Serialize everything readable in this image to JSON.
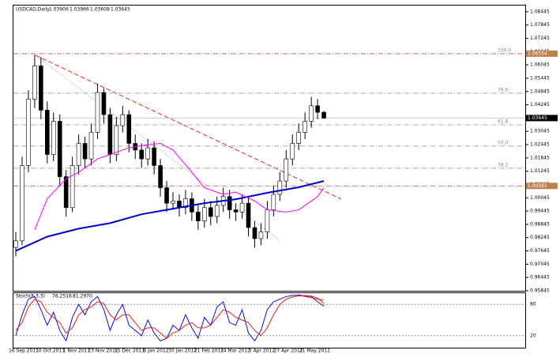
{
  "chart_data": {
    "type": "candlestick",
    "title": "USDCAD,Daily",
    "ohlc": [
      1.03906,
      1.03966,
      1.03608,
      1.03645
    ],
    "candles": [
      [
        0.978,
        0.985,
        0.974,
        0.981
      ],
      [
        0.981,
        1.019,
        0.979,
        1.015
      ],
      [
        1.015,
        1.049,
        1.012,
        1.045
      ],
      [
        1.045,
        1.065,
        1.041,
        1.06
      ],
      [
        1.06,
        1.064,
        1.036,
        1.04
      ],
      [
        1.04,
        1.044,
        1.016,
        1.02
      ],
      [
        1.02,
        1.039,
        1.017,
        1.035
      ],
      [
        1.035,
        1.038,
        1.006,
        1.01
      ],
      [
        1.01,
        1.013,
        0.992,
        0.996
      ],
      [
        0.996,
        1.019,
        0.994,
        1.015
      ],
      [
        1.015,
        1.029,
        1.011,
        1.025
      ],
      [
        1.025,
        1.028,
        1.014,
        1.018
      ],
      [
        1.018,
        1.034,
        1.015,
        1.03
      ],
      [
        1.03,
        1.052,
        1.027,
        1.048
      ],
      [
        1.048,
        1.05,
        1.034,
        1.038
      ],
      [
        1.038,
        1.041,
        1.016,
        1.02
      ],
      [
        1.02,
        1.037,
        1.017,
        1.033
      ],
      [
        1.033,
        1.042,
        1.03,
        1.038
      ],
      [
        1.038,
        1.04,
        1.021,
        1.025
      ],
      [
        1.025,
        1.029,
        1.018,
        1.022
      ],
      [
        1.022,
        1.025,
        1.014,
        1.018
      ],
      [
        1.018,
        1.027,
        1.015,
        1.023
      ],
      [
        1.023,
        1.026,
        1.011,
        1.015
      ],
      [
        1.015,
        1.018,
        1.001,
        1.005
      ],
      [
        1.005,
        1.008,
        0.994,
        0.998
      ],
      [
        0.998,
        1.003,
        0.995,
        0.999
      ],
      [
        0.999,
        1.002,
        0.992,
        0.996
      ],
      [
        0.996,
        1.004,
        0.993,
        1.0
      ],
      [
        1.0,
        1.003,
        0.99,
        0.994
      ],
      [
        0.994,
        0.997,
        0.986,
        0.99
      ],
      [
        0.99,
        1.0,
        0.987,
        0.996
      ],
      [
        0.996,
        0.999,
        0.988,
        0.992
      ],
      [
        0.992,
        1.001,
        0.989,
        0.997
      ],
      [
        0.997,
        1.005,
        0.994,
        1.001
      ],
      [
        1.001,
        1.004,
        0.991,
        0.995
      ],
      [
        0.995,
        0.998,
        0.99,
        0.994
      ],
      [
        0.994,
        1.002,
        0.991,
        0.998
      ],
      [
        0.998,
        1.001,
        0.983,
        0.987
      ],
      [
        0.987,
        0.99,
        0.978,
        0.982
      ],
      [
        0.982,
        0.989,
        0.979,
        0.985
      ],
      [
        0.985,
        0.999,
        0.982,
        0.995
      ],
      [
        0.995,
        1.006,
        0.992,
        1.002
      ],
      [
        1.002,
        1.012,
        0.999,
        1.008
      ],
      [
        1.008,
        1.022,
        1.005,
        1.018
      ],
      [
        1.018,
        1.029,
        1.015,
        1.025
      ],
      [
        1.025,
        1.034,
        1.022,
        1.03
      ],
      [
        1.03,
        1.039,
        1.027,
        1.035
      ],
      [
        1.035,
        1.046,
        1.032,
        1.042
      ],
      [
        1.042,
        1.045,
        1.036,
        1.03906
      ],
      [
        1.03906,
        1.03966,
        1.03608,
        1.03645
      ]
    ],
    "lines": [
      {
        "color": "#0000c8",
        "x": [
          0,
          5,
          10,
          15,
          20,
          25,
          30,
          35,
          40,
          45,
          49
        ],
        "values": [
          0.9765,
          0.9829,
          0.9865,
          0.989,
          0.993,
          0.9955,
          0.998,
          0.9998,
          1.0027,
          1.0052,
          1.008
        ]
      },
      {
        "color": "#ff00ff",
        "x": [
          3,
          5,
          8,
          10,
          13,
          15,
          18,
          20,
          23,
          25,
          28,
          30,
          33,
          35,
          38,
          40,
          43,
          45,
          48,
          49
        ],
        "values": [
          0.986,
          1.0,
          1.009,
          1.012,
          1.018,
          1.02,
          1.023,
          1.024,
          1.025,
          1.022,
          1.012,
          1.005,
          1.002,
          1.003,
          0.999,
          0.995,
          0.994,
          0.995,
          1.001,
          1.005
        ]
      }
    ],
    "x_labels": [
      "16 Sep 2011",
      "10 Oct 2011",
      "1 Nov 2011",
      "23 Nov 2011",
      "15 Dec 2011",
      "6 Jan 2012",
      "30 Jan 2012",
      "21 Feb 2012",
      "14 Mar 2012",
      "5 Apr 2012",
      "27 Apr 2012",
      "21 May 2012"
    ],
    "ylim": [
      0.95845,
      1.0869
    ],
    "yticks": [
      1.08445,
      1.07845,
      1.07245,
      1.06645,
      1.06045,
      1.05445,
      1.04845,
      1.04245,
      1.03645,
      1.03045,
      1.02445,
      1.01845,
      1.01245,
      1.00645,
      1.00045,
      0.99445,
      0.98845,
      0.98245,
      0.97645,
      0.97045,
      0.96445,
      0.95845
    ],
    "fib_levels": [
      {
        "value": 1.06554,
        "label": "100.0"
      },
      {
        "value": 1.0477,
        "label": "78.6"
      },
      {
        "value": 1.0334,
        "label": "61.8"
      },
      {
        "value": 1.0238,
        "label": "50.0"
      },
      {
        "value": 1.0138,
        "label": "38.2"
      }
    ],
    "marker_prices": [
      1.06554,
      1.00581
    ],
    "current_price": 1.03645,
    "stochastic": {
      "title": "Stoch(8,3,3)",
      "ylim": [
        0,
        100
      ],
      "yticks": [
        20,
        80
      ],
      "series": [
        {
          "name": "76.2516",
          "color": "#1010d0",
          "values": [
            20,
            60,
            90,
            95,
            70,
            40,
            65,
            30,
            10,
            55,
            80,
            60,
            85,
            95,
            70,
            30,
            60,
            80,
            40,
            30,
            20,
            50,
            25,
            10,
            15,
            40,
            30,
            60,
            35,
            15,
            55,
            40,
            75,
            85,
            45,
            40,
            70,
            25,
            10,
            30,
            70,
            85,
            90,
            95,
            97,
            98,
            96,
            95,
            85,
            76.2516
          ]
        },
        {
          "name": "81.2970",
          "color": "#e02020",
          "values": [
            30,
            45,
            75,
            90,
            85,
            65,
            55,
            45,
            25,
            35,
            60,
            70,
            75,
            85,
            82,
            60,
            50,
            60,
            60,
            45,
            30,
            35,
            35,
            25,
            15,
            25,
            30,
            40,
            45,
            35,
            35,
            40,
            55,
            70,
            65,
            55,
            50,
            45,
            30,
            20,
            35,
            60,
            80,
            90,
            94,
            96,
            97,
            96,
            92,
            81.297
          ]
        }
      ]
    }
  }
}
